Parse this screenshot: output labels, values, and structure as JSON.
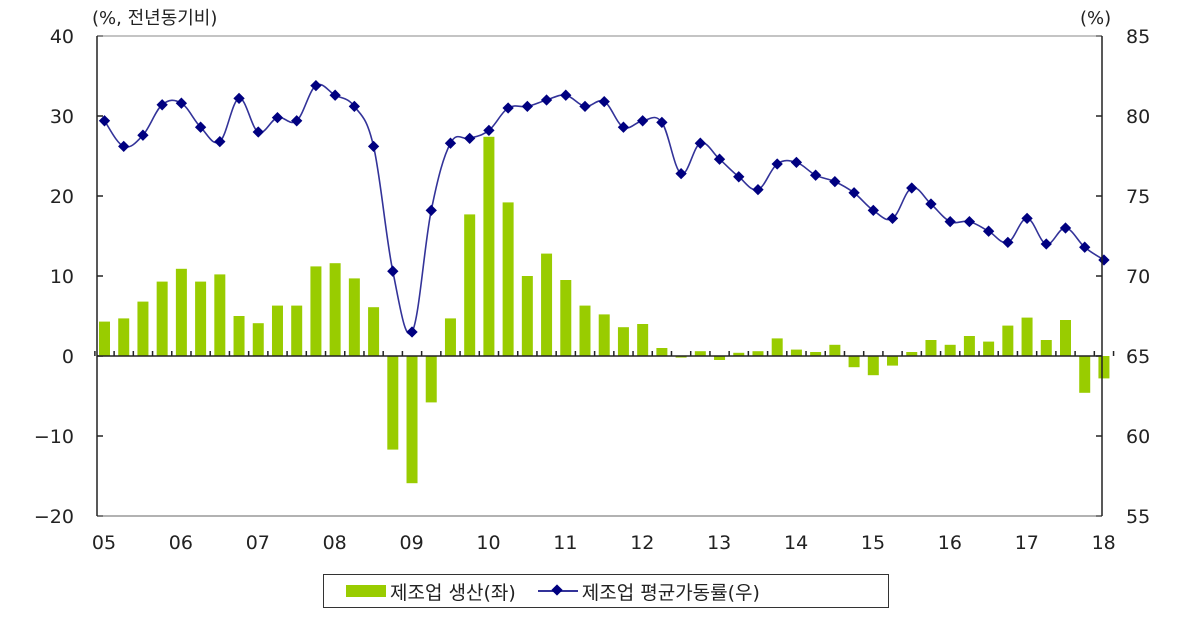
{
  "chart_data": {
    "type": "bar+line",
    "title": "",
    "left_axis": {
      "unit_label": "(%,  전년동기비)",
      "ticks": [
        40,
        30,
        20,
        10,
        0,
        -10,
        -20
      ],
      "tick_labels": [
        "40",
        "30",
        "20",
        "10",
        "0",
        "−10",
        "−20"
      ],
      "range": [
        -20,
        40
      ]
    },
    "right_axis": {
      "unit_label": "(%)",
      "ticks": [
        85,
        80,
        75,
        70,
        65,
        60,
        55
      ],
      "tick_labels": [
        "85",
        "80",
        "75",
        "70",
        "65",
        "60",
        "55"
      ],
      "range": [
        55,
        85
      ]
    },
    "x_axis": {
      "tick_labels": [
        "05",
        "06",
        "07",
        "08",
        "09",
        "10",
        "11",
        "12",
        "13",
        "14",
        "15",
        "16",
        "17",
        "18"
      ],
      "frequency": "quarterly",
      "start": "2005Q1",
      "end": "2018Q1"
    },
    "x": [
      "05Q1",
      "05Q2",
      "05Q3",
      "05Q4",
      "06Q1",
      "06Q2",
      "06Q3",
      "06Q4",
      "07Q1",
      "07Q2",
      "07Q3",
      "07Q4",
      "08Q1",
      "08Q2",
      "08Q3",
      "08Q4",
      "09Q1",
      "09Q2",
      "09Q3",
      "09Q4",
      "10Q1",
      "10Q2",
      "10Q3",
      "10Q4",
      "11Q1",
      "11Q2",
      "11Q3",
      "11Q4",
      "12Q1",
      "12Q2",
      "12Q3",
      "12Q4",
      "13Q1",
      "13Q2",
      "13Q3",
      "13Q4",
      "14Q1",
      "14Q2",
      "14Q3",
      "14Q4",
      "15Q1",
      "15Q2",
      "15Q3",
      "15Q4",
      "16Q1",
      "16Q2",
      "16Q3",
      "16Q4",
      "17Q1",
      "17Q2",
      "17Q3",
      "17Q4",
      "18Q1"
    ],
    "series": [
      {
        "name": "제조업 생산(좌)",
        "type": "bar",
        "axis": "left",
        "color": "#99cc00",
        "values": [
          4.3,
          4.7,
          6.8,
          9.3,
          10.9,
          9.3,
          10.2,
          5.0,
          4.1,
          6.3,
          6.3,
          11.2,
          11.6,
          9.7,
          6.1,
          -11.7,
          -15.9,
          -5.8,
          4.7,
          17.7,
          27.4,
          19.2,
          10.0,
          12.8,
          9.5,
          6.3,
          5.2,
          3.6,
          4.0,
          1.0,
          -0.2,
          0.6,
          -0.5,
          0.4,
          0.6,
          2.2,
          0.8,
          0.5,
          1.4,
          -1.4,
          -2.4,
          -1.2,
          0.5,
          2.0,
          1.4,
          2.5,
          1.8,
          3.8,
          4.8,
          2.0,
          4.5,
          -4.6,
          -2.8
        ]
      },
      {
        "name": "제조업 평균가동률(우)",
        "type": "line",
        "axis": "right",
        "color": "#333399",
        "marker": "diamond",
        "marker_color": "#000080",
        "values": [
          79.7,
          78.1,
          78.8,
          80.7,
          80.8,
          79.3,
          78.4,
          81.1,
          79.0,
          79.9,
          79.7,
          81.9,
          81.3,
          80.6,
          78.1,
          70.3,
          66.5,
          74.1,
          78.3,
          78.6,
          79.1,
          80.5,
          80.6,
          81.0,
          81.3,
          80.6,
          80.9,
          79.3,
          79.7,
          79.6,
          76.4,
          78.3,
          77.3,
          76.2,
          75.4,
          77.0,
          77.1,
          76.3,
          75.9,
          75.2,
          74.1,
          73.6,
          75.5,
          74.5,
          73.4,
          73.4,
          72.8,
          72.1,
          73.6,
          72.0,
          73.0,
          71.8,
          71.0
        ]
      }
    ],
    "legend": {
      "position": "bottom",
      "items": [
        {
          "label": "제조업 생산(좌)",
          "kind": "bar"
        },
        {
          "label": "제조업 평균가동률(우)",
          "kind": "line"
        }
      ]
    },
    "grid": false
  }
}
